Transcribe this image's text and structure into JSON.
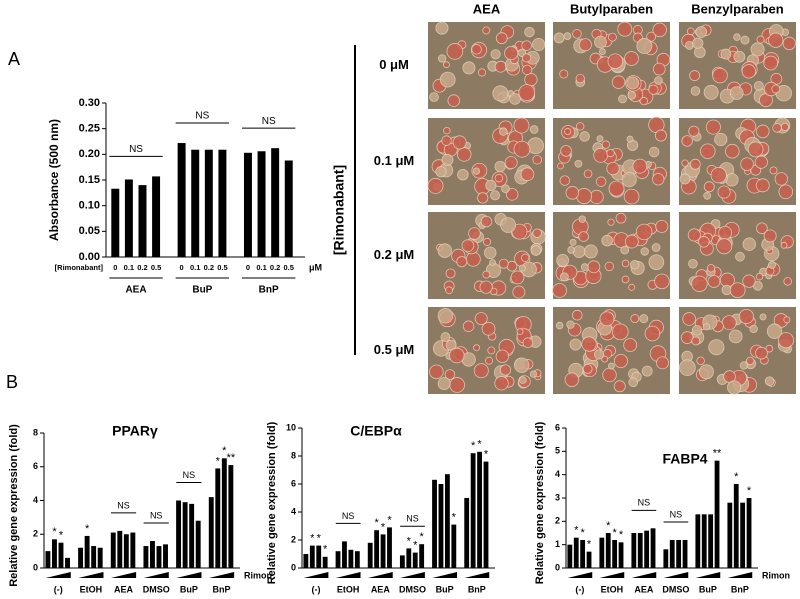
{
  "panel_labels": [
    "A",
    "B"
  ],
  "image_grid": {
    "axis_label": "[Rimonabant]",
    "columns": [
      "AEA",
      "Butylparaben",
      "Benzylparaben"
    ],
    "rows": [
      "0 μM",
      "0.1 μM",
      "0.2 μM",
      "0.5 μM"
    ]
  },
  "chart_data": [
    {
      "type": "bar",
      "ylabel": "Absorbance (500 nm)",
      "x_prefix": "[Rimonabant]",
      "x_unit": "μM",
      "groups": [
        "AEA",
        "BuP",
        "BnP"
      ],
      "categories": [
        "0",
        "0.1",
        "0.2",
        "0.5",
        "0",
        "0.1",
        "0.2",
        "0.5",
        "0",
        "0.1",
        "0.2",
        "0.5"
      ],
      "values": [
        0.133,
        0.151,
        0.14,
        0.157,
        0.222,
        0.209,
        0.209,
        0.209,
        0.203,
        0.206,
        0.212,
        0.188
      ],
      "ns": [
        "NS",
        "NS",
        "NS"
      ],
      "color": "#000000",
      "ylim": [
        0,
        0.3
      ],
      "yticks": [
        {
          "value": 0,
          "label": "0.00"
        },
        0.05,
        {
          "value": 0.1,
          "label": "0.10"
        },
        0.15,
        {
          "value": 0.2,
          "label": "0.20"
        },
        0.25,
        {
          "value": 0.3,
          "label": "0.30"
        }
      ]
    },
    {
      "type": "bar",
      "title": "PPARγ",
      "ylabel": "Relative gene expression (fold)",
      "x_note": "Rimon",
      "groups": [
        "(-)",
        "EtOH",
        "AEA",
        "DMSO",
        "BuP",
        "BnP"
      ],
      "values": [
        1.0,
        1.7,
        1.5,
        0.6,
        1.2,
        1.9,
        1.3,
        1.2,
        2.1,
        2.2,
        2.0,
        2.1,
        1.3,
        1.6,
        1.3,
        1.4,
        4.0,
        3.9,
        3.8,
        2.8,
        4.2,
        5.9,
        6.5,
        6.1
      ],
      "marks": [
        null,
        "*",
        "*",
        null,
        null,
        "*",
        null,
        null,
        null,
        null,
        null,
        null,
        null,
        null,
        null,
        null,
        null,
        null,
        null,
        null,
        null,
        "*",
        "*",
        "**"
      ],
      "ns": [
        null,
        null,
        "NS",
        "NS",
        "NS",
        null
      ],
      "color": "#000000",
      "ylim": [
        0,
        8
      ],
      "yticks": [
        0,
        2,
        4,
        6,
        8
      ]
    },
    {
      "type": "bar",
      "title": "C/EBPα",
      "ylabel": "Relative gene expression (fold)",
      "groups": [
        "(-)",
        "EtOH",
        "AEA",
        "DMSO",
        "BuP",
        "BnP"
      ],
      "values": [
        1.0,
        1.6,
        1.6,
        0.8,
        1.2,
        1.9,
        1.3,
        1.2,
        1.8,
        2.7,
        2.4,
        2.9,
        0.9,
        1.4,
        1.1,
        1.7,
        6.3,
        6.0,
        6.7,
        3.1,
        5.0,
        8.2,
        8.3,
        7.6
      ],
      "marks": [
        null,
        "*",
        "*",
        "*",
        null,
        null,
        null,
        null,
        null,
        "*",
        "*",
        "*",
        null,
        "*",
        "*",
        "*",
        null,
        null,
        null,
        "*",
        null,
        "*",
        "*",
        "*"
      ],
      "ns": [
        null,
        "NS",
        null,
        "NS",
        null,
        null
      ],
      "color": "#000000",
      "ylim": [
        0,
        10
      ],
      "yticks": [
        0,
        2,
        4,
        6,
        8,
        10
      ]
    },
    {
      "type": "bar",
      "title": "FABP4",
      "ylabel": "Relative gene expression (fold)",
      "x_note": "Rimon",
      "groups": [
        "(-)",
        "EtOH",
        "AEA",
        "DMSO",
        "BuP",
        "BnP"
      ],
      "values": [
        1.0,
        1.3,
        1.2,
        0.7,
        1.3,
        1.5,
        1.2,
        1.1,
        1.5,
        1.5,
        1.6,
        1.7,
        0.8,
        1.2,
        1.2,
        1.2,
        2.3,
        2.3,
        2.3,
        4.6,
        2.8,
        3.6,
        2.8,
        3.0
      ],
      "marks": [
        null,
        "*",
        "*",
        "*",
        null,
        "*",
        "*",
        "*",
        null,
        null,
        null,
        null,
        null,
        null,
        null,
        null,
        null,
        null,
        null,
        "**",
        null,
        "*",
        null,
        "*"
      ],
      "ns": [
        null,
        null,
        "NS",
        "NS",
        null,
        null
      ],
      "color": "#000000",
      "ylim": [
        0,
        6
      ],
      "yticks": [
        0,
        1,
        2,
        3,
        4,
        5,
        6
      ]
    }
  ]
}
